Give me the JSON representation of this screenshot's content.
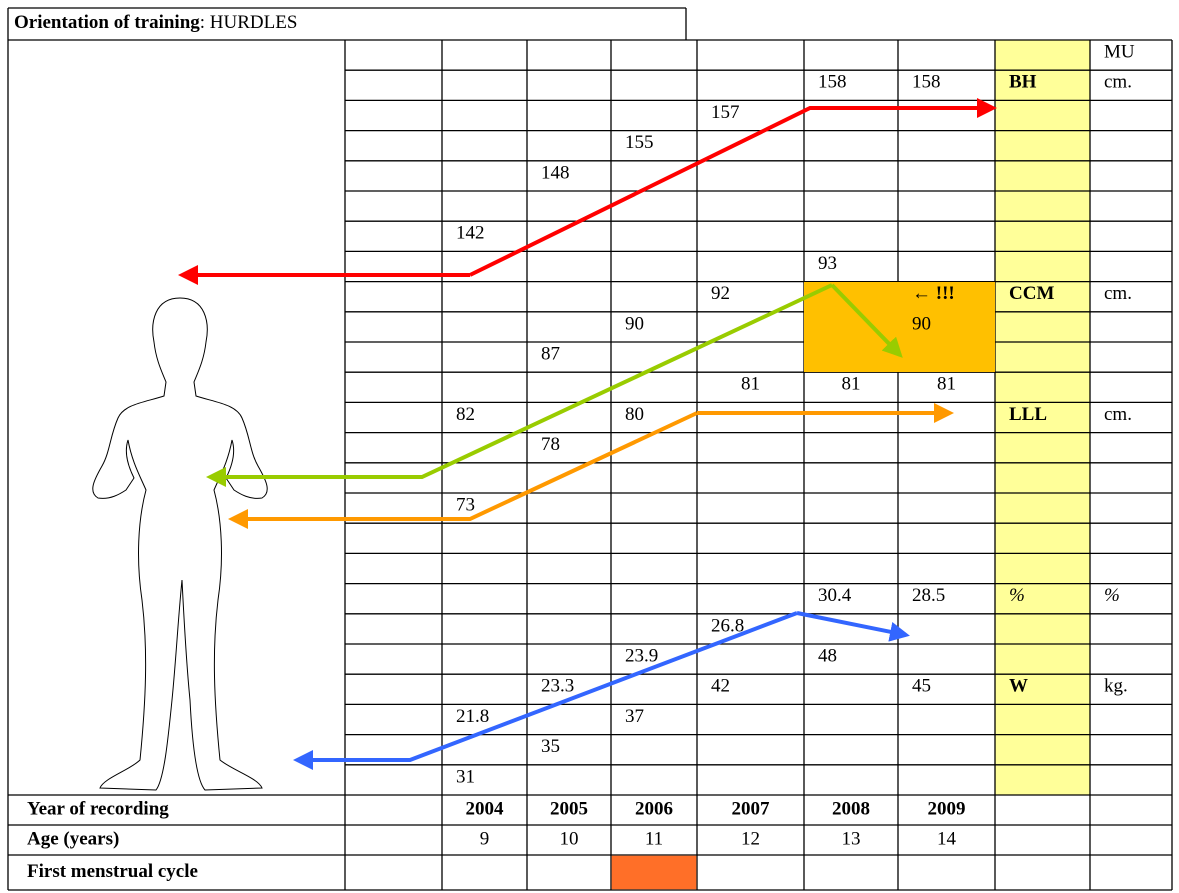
{
  "title": {
    "bold": "Orientation of training",
    "rest": ": HURDLES"
  },
  "body_rows": [
    [
      null,
      null,
      null,
      null,
      null,
      null,
      null,
      null,
      "MU"
    ],
    [
      null,
      null,
      null,
      null,
      null,
      158,
      158,
      {
        "text": "BH",
        "color": "#ff0000",
        "bold": true
      },
      "cm."
    ],
    [
      null,
      null,
      null,
      null,
      157,
      null,
      null,
      null,
      null
    ],
    [
      null,
      null,
      null,
      155,
      null,
      null,
      null,
      null,
      null
    ],
    [
      null,
      null,
      148,
      null,
      null,
      null,
      null,
      null,
      null
    ],
    [
      null,
      null,
      null,
      null,
      null,
      null,
      null,
      null,
      null
    ],
    [
      null,
      142,
      null,
      null,
      null,
      null,
      null,
      null,
      null
    ],
    [
      null,
      null,
      null,
      null,
      null,
      93,
      null,
      null,
      null
    ],
    [
      null,
      null,
      null,
      null,
      92,
      null,
      {
        "text": "← !!!",
        "bold": true
      },
      {
        "text": "CCM",
        "color": "#99cc00",
        "bold": true
      },
      "cm."
    ],
    [
      null,
      null,
      null,
      90,
      null,
      null,
      90,
      null,
      null
    ],
    [
      null,
      null,
      87,
      null,
      null,
      null,
      null,
      null,
      null
    ],
    [
      null,
      null,
      null,
      null,
      {
        "text": 81,
        "align": "center"
      },
      {
        "text": 81,
        "align": "center"
      },
      {
        "text": 81,
        "align": "center"
      },
      null,
      null
    ],
    [
      null,
      82,
      null,
      80,
      null,
      null,
      null,
      {
        "text": "LLL",
        "color": "#ff9900",
        "bold": true
      },
      "cm."
    ],
    [
      null,
      null,
      78,
      null,
      null,
      null,
      null,
      null,
      null
    ],
    [
      null,
      null,
      null,
      null,
      null,
      null,
      null,
      null,
      null
    ],
    [
      null,
      73,
      null,
      null,
      null,
      null,
      null,
      null,
      null
    ],
    [
      null,
      null,
      null,
      null,
      null,
      null,
      null,
      null,
      null
    ],
    [
      null,
      null,
      null,
      null,
      null,
      null,
      null,
      null,
      null
    ],
    [
      null,
      null,
      null,
      null,
      null,
      30.4,
      28.5,
      {
        "text": "%",
        "italic": true
      },
      {
        "text": "%",
        "italic": true
      }
    ],
    [
      null,
      null,
      null,
      null,
      26.8,
      null,
      null,
      null,
      null
    ],
    [
      null,
      null,
      null,
      23.9,
      null,
      48,
      null,
      null,
      null
    ],
    [
      null,
      null,
      23.3,
      null,
      42,
      null,
      45,
      {
        "text": "W",
        "color": "#3366ff",
        "bold": true
      },
      "kg."
    ],
    [
      null,
      21.8,
      null,
      37,
      null,
      null,
      null,
      null,
      null
    ],
    [
      null,
      null,
      35,
      null,
      null,
      null,
      null,
      null,
      null
    ],
    [
      null,
      31,
      null,
      null,
      null,
      null,
      null,
      null,
      null
    ]
  ],
  "year_row": {
    "label": "Year of recording",
    "values": [
      2004,
      2005,
      2006,
      2007,
      2008,
      2009
    ]
  },
  "age_row": {
    "label": "Age (years)",
    "values": [
      9,
      10,
      11,
      12,
      13,
      14
    ]
  },
  "menstrual_row": {
    "label": "First menstrual cycle",
    "marked": [
      false,
      false,
      true,
      false,
      false,
      false
    ],
    "color": "#ff6f28"
  }
}
